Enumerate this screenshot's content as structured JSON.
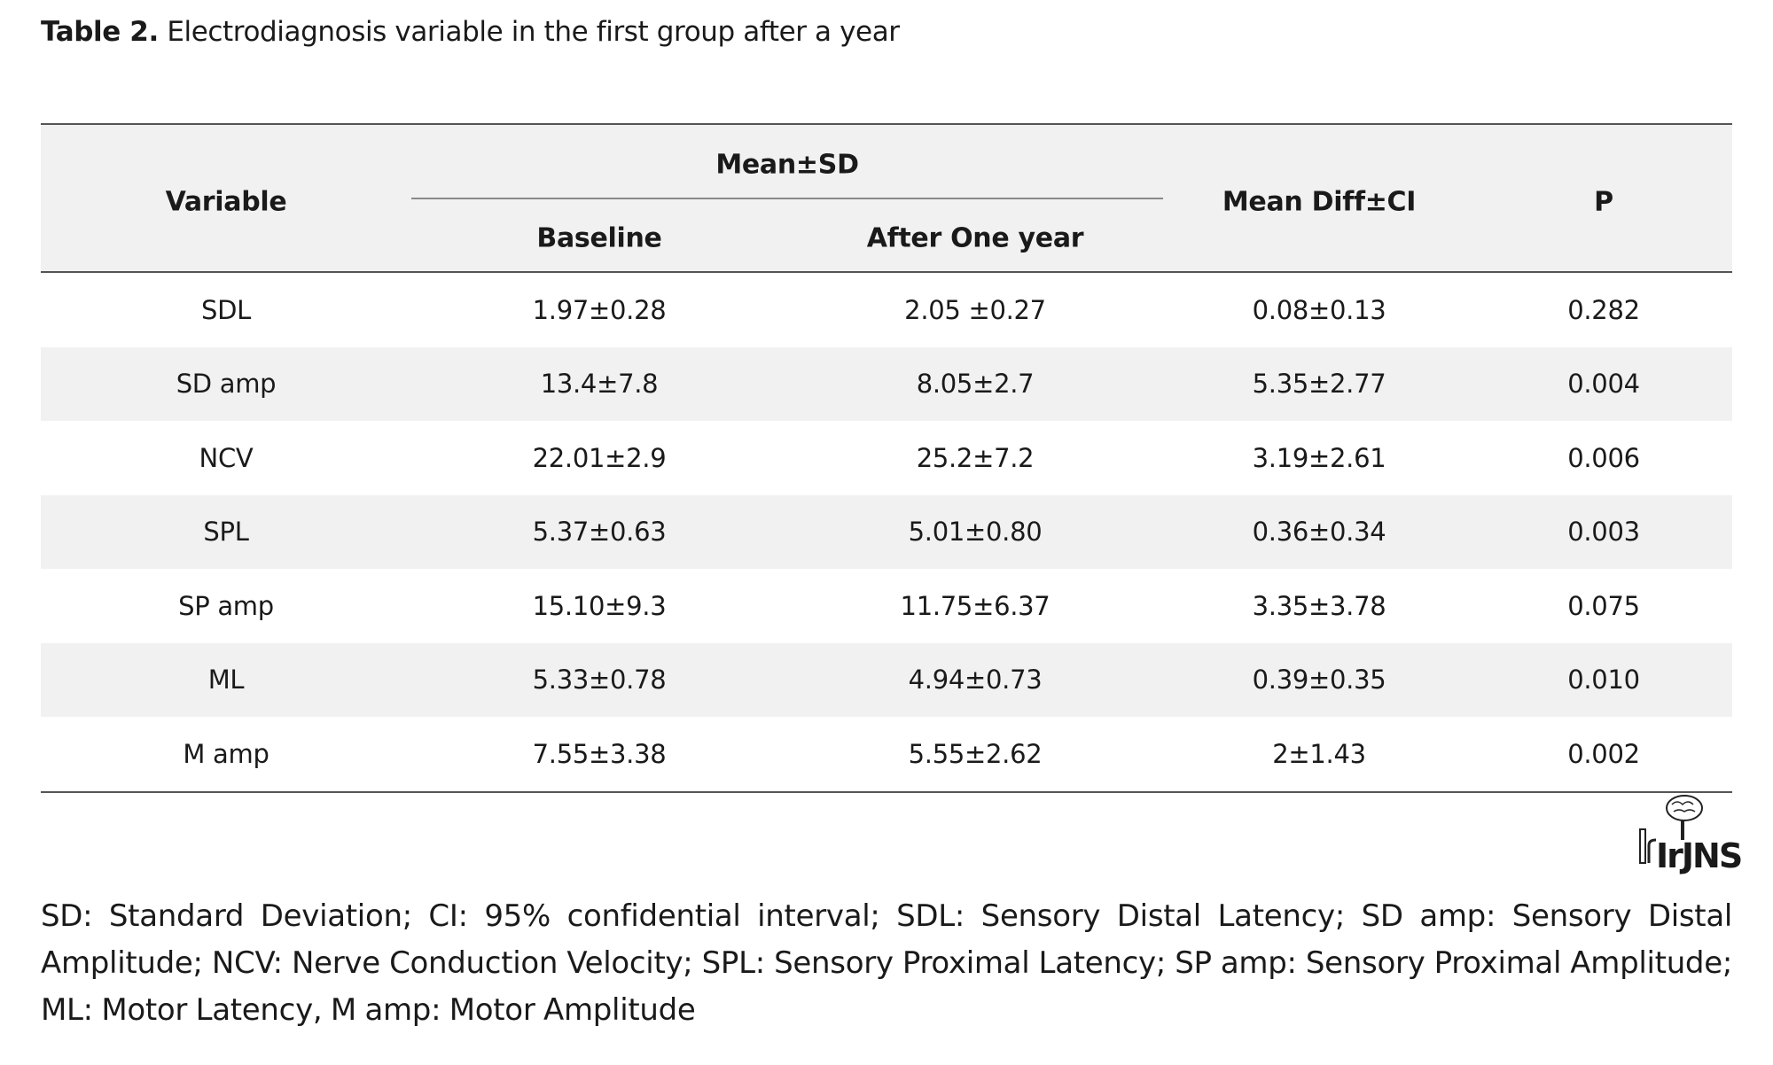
{
  "caption": {
    "label": "Table 2.",
    "text": "Electrodiagnosis variable in the first group after a year"
  },
  "table": {
    "headers": {
      "variable": "Variable",
      "group": "Mean±SD",
      "baseline": "Baseline",
      "after": "After One year",
      "mean_diff": "Mean Diff±CI",
      "p": "P"
    },
    "rows": [
      {
        "variable": "SDL",
        "baseline": "1.97±0.28",
        "after": "2.05 ±0.27",
        "mean_diff": "0.08±0.13",
        "p": "0.282"
      },
      {
        "variable": "SD amp",
        "baseline": "13.4±7.8",
        "after": "8.05±2.7",
        "mean_diff": "5.35±2.77",
        "p": "0.004"
      },
      {
        "variable": "NCV",
        "baseline": "22.01±2.9",
        "after": "25.2±7.2",
        "mean_diff": "3.19±2.61",
        "p": "0.006"
      },
      {
        "variable": "SPL",
        "baseline": "5.37±0.63",
        "after": "5.01±0.80",
        "mean_diff": "0.36±0.34",
        "p": "0.003"
      },
      {
        "variable": "SP amp",
        "baseline": "15.10±9.3",
        "after": "11.75±6.37",
        "mean_diff": "3.35±3.78",
        "p": "0.075"
      },
      {
        "variable": "ML",
        "baseline": "5.33±0.78",
        "after": "4.94±0.73",
        "mean_diff": "0.39±0.35",
        "p": "0.010"
      },
      {
        "variable": "M amp",
        "baseline": "7.55±3.38",
        "after": "5.55±2.62",
        "mean_diff": "2±1.43",
        "p": "0.002"
      }
    ]
  },
  "logo": {
    "text": "IrJNS",
    "icon": "brain-spine-logo-icon"
  },
  "footnote": "SD: Standard Deviation; CI: 95% confidential interval; SDL: Sensory Distal Latency; SD amp: Sensory Distal Amplitude; NCV: Nerve Conduction Velocity; SPL: Sensory Proximal Latency; SP amp: Sensory Proximal Amplitude; ML: Motor Latency, M amp: Motor Amplitude",
  "colors": {
    "row_shade": "#f1f1f1",
    "rule": "#555555",
    "text": "#1a1a1a"
  }
}
